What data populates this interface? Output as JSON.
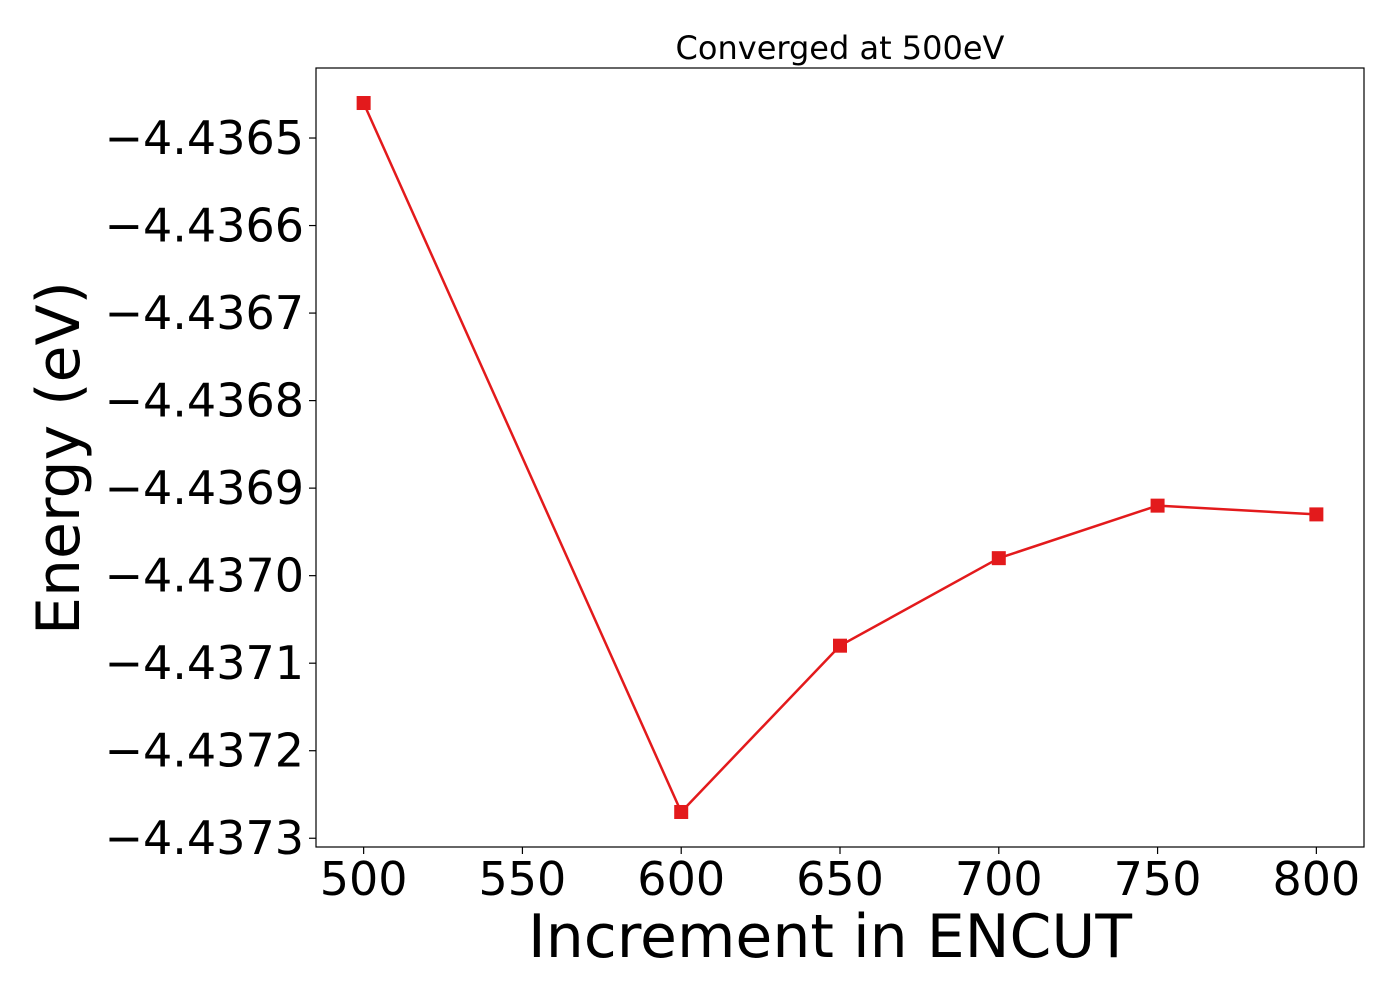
{
  "chart_data": {
    "type": "line",
    "title": "Converged at 500eV",
    "xlabel": "Increment in ENCUT",
    "ylabel": "Energy (eV)",
    "xlim": [
      485,
      815
    ],
    "ylim": [
      -4.43731,
      -4.43642
    ],
    "xticks": [
      500,
      550,
      600,
      650,
      700,
      750,
      800
    ],
    "xtick_labels": [
      "500",
      "550",
      "600",
      "650",
      "700",
      "750",
      "800"
    ],
    "yticks": [
      -4.4365,
      -4.4366,
      -4.4367,
      -4.4368,
      -4.4369,
      -4.437,
      -4.4371,
      -4.4372,
      -4.4373
    ],
    "ytick_labels": [
      "−4.4365",
      "−4.4366",
      "−4.4367",
      "−4.4368",
      "−4.4369",
      "−4.4370",
      "−4.4371",
      "−4.4372",
      "−4.4373"
    ],
    "grid": false,
    "legend": "none",
    "series": [
      {
        "color": "#e31a1c",
        "marker": "square",
        "x": [
          500,
          600,
          650,
          700,
          750,
          800
        ],
        "y": [
          -4.43646,
          -4.43727,
          -4.43708,
          -4.43698,
          -4.43692,
          -4.43693
        ]
      }
    ]
  }
}
